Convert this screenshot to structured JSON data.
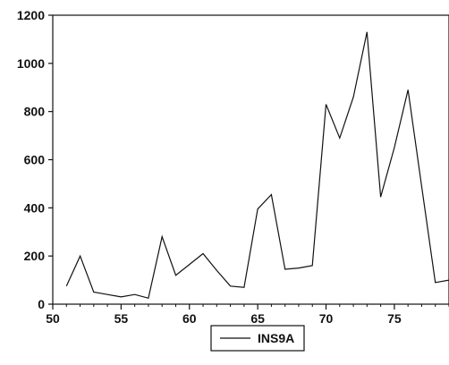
{
  "chart_data": {
    "type": "line",
    "x": [
      51,
      52,
      53,
      54,
      55,
      56,
      57,
      58,
      59,
      60,
      61,
      62,
      63,
      64,
      65,
      66,
      67,
      68,
      69,
      70,
      71,
      72,
      73,
      74,
      75,
      76,
      77,
      78,
      79
    ],
    "series": [
      {
        "name": "INS9A",
        "values": [
          75,
          200,
          50,
          40,
          30,
          40,
          25,
          280,
          120,
          165,
          210,
          140,
          75,
          70,
          395,
          455,
          145,
          150,
          160,
          830,
          690,
          860,
          1130,
          445,
          650,
          890,
          490,
          90,
          100
        ],
        "color": "#111111"
      }
    ],
    "xlim": [
      50,
      79
    ],
    "ylim": [
      0,
      1200
    ],
    "x_ticks": [
      50,
      55,
      60,
      65,
      70,
      75
    ],
    "y_ticks": [
      0,
      200,
      400,
      600,
      800,
      1000,
      1200
    ],
    "grid": false,
    "legend_position": "bottom-center"
  }
}
